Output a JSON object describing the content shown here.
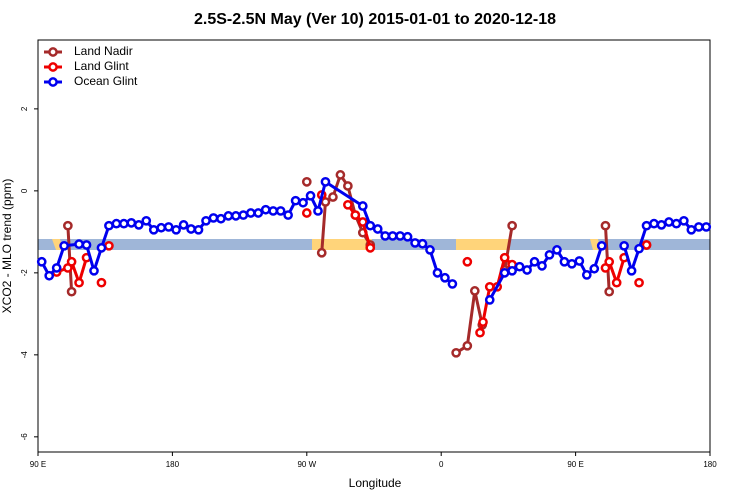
{
  "chart_data": {
    "type": "line",
    "title": "2.5S-2.5N May (Ver 10)   2015-01-01 to 2020-12-18",
    "x_label": "Longitude",
    "y_label": "XCO2 - MLO trend (ppm)",
    "xlim": [
      90,
      540
    ],
    "ylim": [
      -6.37,
      3.68
    ],
    "xticks": [
      {
        "value": 90,
        "label": "90 E"
      },
      180,
      {
        "value": 270,
        "label": "90 W"
      },
      {
        "value": 360,
        "label": "0"
      },
      {
        "value": 450,
        "label": "90 E"
      },
      {
        "value": 540,
        "label": "180"
      }
    ],
    "yticks": [
      -6,
      -4,
      -2,
      0,
      2
    ],
    "legend": "top-left",
    "series": [
      {
        "name": "Land Nadir",
        "color": "#a52a2a",
        "x": [
          110,
          112.5,
          null,
          280,
          282.5,
          287.5,
          292.5,
          297.5,
          302.5,
          307.5,
          312.5,
          null,
          270,
          null,
          370,
          377.5,
          382.5,
          387.5,
          null,
          402.5,
          407.5,
          null,
          470,
          472.5,
          null,
          497.5
        ],
        "values": [
          -0.85,
          -2.46,
          null,
          -1.51,
          -0.27,
          -0.15,
          0.39,
          0.12,
          -0.59,
          -1.02,
          -1.32,
          null,
          0.22,
          null,
          -3.95,
          -3.78,
          -2.44,
          -3.27,
          null,
          -1.93,
          -0.85,
          null,
          -0.85,
          -2.46,
          null,
          -1.32
        ]
      },
      {
        "name": "Land Glint",
        "color": "#ee0000",
        "x": [
          102.5,
          110,
          112.5,
          117.5,
          122.5,
          null,
          132.5,
          null,
          137.5,
          null,
          270,
          null,
          280,
          null,
          297.5,
          302.5,
          307.5,
          312.5,
          null,
          377.5,
          null,
          386,
          388,
          392.5,
          397.5,
          402.5,
          407.5,
          null,
          470,
          472.5,
          477.5,
          482.5,
          null,
          492.5,
          null,
          497.5
        ],
        "values": [
          -1.98,
          -1.88,
          -1.73,
          -2.24,
          -1.63,
          null,
          -2.24,
          null,
          -1.34,
          null,
          -0.54,
          null,
          -0.1,
          null,
          -0.34,
          -0.59,
          -0.76,
          -1.39,
          null,
          -1.73,
          null,
          -3.46,
          -3.2,
          -2.34,
          -2.34,
          -1.63,
          -1.8,
          null,
          -1.88,
          -1.73,
          -2.24,
          -1.63,
          null,
          -2.24,
          null,
          -1.32
        ]
      },
      {
        "name": "Ocean Glint",
        "color": "#0000ee",
        "x": [
          92.5,
          97.5,
          102.5,
          107.5,
          117.5,
          122.5,
          127.5,
          132.5,
          137.5,
          142.5,
          147.5,
          152.5,
          157.5,
          162.5,
          167.5,
          172.5,
          177.5,
          182.5,
          187.5,
          192.5,
          197.5,
          202.5,
          207.5,
          212.5,
          217.5,
          222.5,
          227.5,
          232.5,
          237.5,
          242.5,
          247.5,
          252.5,
          257.5,
          262.5,
          267.5,
          272.5,
          277.5,
          282.5,
          307.5,
          312.5,
          317.5,
          322.5,
          327.5,
          332.5,
          337.5,
          342.5,
          347.5,
          352.5,
          357.5,
          362.5,
          367.5,
          null,
          392.5,
          402.5,
          407.5,
          412.5,
          417.5,
          422.5,
          427.5,
          432.5,
          437.5,
          442.5,
          447.5,
          452.5,
          457.5,
          462.5,
          467.5,
          null,
          482.5,
          487.5,
          492.5,
          497.5,
          502.5,
          507.5,
          512.5,
          517.5,
          522.5,
          527.5,
          532.5,
          537.5
        ],
        "values": [
          -1.73,
          -2.07,
          -1.88,
          -1.34,
          -1.3,
          -1.32,
          -1.95,
          -1.39,
          -0.85,
          -0.8,
          -0.8,
          -0.78,
          -0.83,
          -0.73,
          -0.95,
          -0.9,
          -0.88,
          -0.95,
          -0.83,
          -0.93,
          -0.95,
          -0.73,
          -0.66,
          -0.68,
          -0.61,
          -0.61,
          -0.59,
          -0.54,
          -0.54,
          -0.46,
          -0.49,
          -0.49,
          -0.59,
          -0.24,
          -0.29,
          -0.12,
          -0.49,
          0.22,
          -0.37,
          -0.85,
          -0.93,
          -1.1,
          -1.1,
          -1.1,
          -1.12,
          -1.27,
          -1.29,
          -1.44,
          -2.0,
          -2.12,
          -2.27,
          null,
          -2.66,
          -2.0,
          -1.95,
          -1.85,
          -1.93,
          -1.73,
          -1.83,
          -1.56,
          -1.44,
          -1.73,
          -1.78,
          -1.71,
          -2.05,
          -1.9,
          -1.34,
          null,
          -1.34,
          -1.95,
          -1.41,
          -0.85,
          -0.8,
          -0.83,
          -0.76,
          -0.8,
          -0.73,
          -0.95,
          -0.88,
          -0.88
        ]
      }
    ]
  }
}
